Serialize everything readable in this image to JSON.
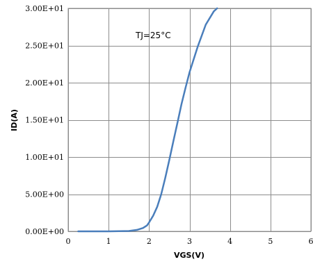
{
  "chart_data": {
    "type": "line",
    "title": "",
    "xlabel": "VGS(V)",
    "ylabel": "ID(A)",
    "xlim": [
      0,
      6
    ],
    "ylim": [
      0,
      30
    ],
    "x_ticks": [
      0,
      1,
      2,
      3,
      4,
      5,
      6
    ],
    "x_tick_labels": [
      "0",
      "1",
      "2",
      "3",
      "4",
      "5",
      "6"
    ],
    "y_ticks": [
      0,
      5,
      10,
      15,
      20,
      25,
      30
    ],
    "y_tick_labels": [
      "0.00E+00",
      "5.00E+00",
      "1.00E+01",
      "1.50E+01",
      "2.00E+01",
      "2.50E+01",
      "3.00E+01"
    ],
    "grid": true,
    "annotation": "TJ=25°C",
    "series": [
      {
        "color": "#4a7ebb",
        "x": [
          0.25,
          0.5,
          1.0,
          1.5,
          1.7,
          1.85,
          1.95,
          2.0,
          2.1,
          2.2,
          2.3,
          2.4,
          2.5,
          2.6,
          2.7,
          2.8,
          2.9,
          3.0,
          3.2,
          3.4,
          3.6,
          3.68
        ],
        "y": [
          0,
          0,
          0,
          0.05,
          0.2,
          0.45,
          0.8,
          1.2,
          2.1,
          3.3,
          5.0,
          7.2,
          9.6,
          12.1,
          14.6,
          17.1,
          19.3,
          21.4,
          24.8,
          27.8,
          29.6,
          30.0
        ]
      }
    ]
  }
}
